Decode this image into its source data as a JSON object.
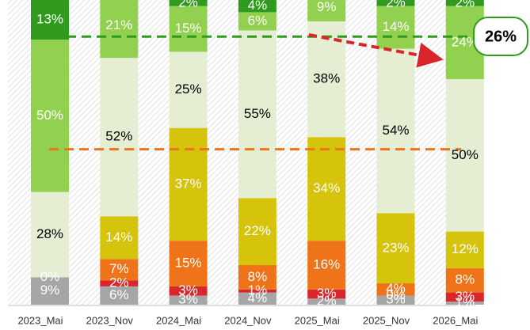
{
  "chart_data": {
    "type": "stacked_bar",
    "categories": [
      "2023_Mai",
      "2023_Nov",
      "2024_Mai",
      "2024_Nov",
      "2025_Mai",
      "2025_Nov",
      "2026_Mai"
    ],
    "ylim": [
      0,
      100
    ],
    "series": [
      {
        "color": "#a6a6a6",
        "label_color": "#ffffff",
        "values": [
          9,
          6,
          3,
          4,
          2,
          3,
          1
        ],
        "value_labels": [
          "9%",
          "6%",
          "3%",
          "4%",
          "2%",
          "3%",
          "1%"
        ]
      },
      {
        "color": "#d9262a",
        "label_color": "#ffffff",
        "values": [
          0,
          2,
          3,
          1,
          3,
          0,
          3
        ],
        "value_labels": [
          "0%",
          "2%",
          "3%",
          "1%",
          "3%",
          "0%",
          "3%"
        ]
      },
      {
        "color": "#ef7318",
        "label_color": "#ffffff",
        "values": [
          null,
          7,
          15,
          8,
          16,
          4,
          8
        ],
        "value_labels": [
          null,
          "7%",
          "15%",
          "8%",
          "16%",
          "4%",
          "8%"
        ]
      },
      {
        "color": "#d6c30c",
        "label_color": "#ffffff",
        "values": [
          null,
          14,
          37,
          22,
          34,
          23,
          12
        ],
        "value_labels": [
          null,
          "14%",
          "37%",
          "22%",
          "34%",
          "23%",
          "12%"
        ]
      },
      {
        "color": "#e5eed3",
        "label_color": "#000000",
        "values": [
          28,
          52,
          25,
          55,
          38,
          54,
          50
        ],
        "value_labels": [
          "28%",
          "52%",
          "25%",
          "55%",
          "38%",
          "54%",
          "50%"
        ]
      },
      {
        "color": "#92d050",
        "label_color": "#ffffff",
        "values": [
          50,
          21,
          15,
          6,
          9,
          14,
          24
        ],
        "value_labels": [
          "50%",
          "21%",
          "15%",
          "6%",
          "9%",
          "14%",
          "24%"
        ]
      },
      {
        "color": "#2f9a1e",
        "label_color": "#ffffff",
        "values": [
          13,
          0,
          2,
          4,
          0,
          2,
          2
        ],
        "value_labels": [
          "13%",
          "0%",
          "2%",
          "4%",
          "0%",
          "2%",
          "2%"
        ]
      }
    ],
    "reference_lines": [
      {
        "value": 88,
        "color": "#2f9a1e"
      },
      {
        "value": 51,
        "color": "#ef7318"
      }
    ],
    "annotation": "26%"
  }
}
